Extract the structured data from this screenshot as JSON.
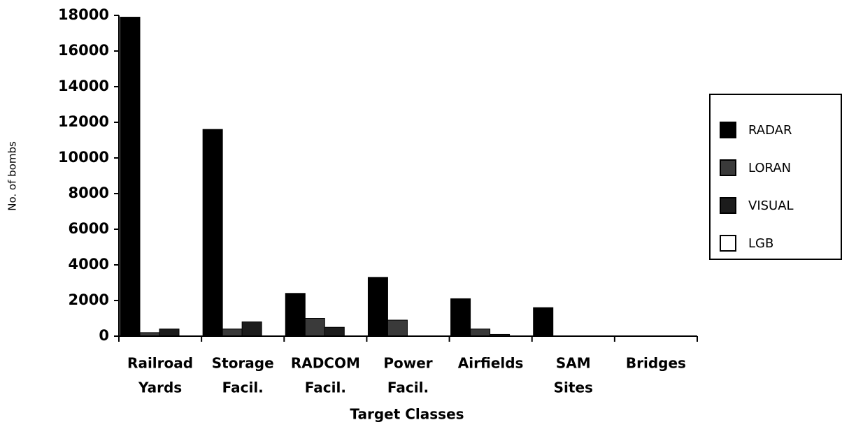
{
  "chart_data": {
    "type": "bar",
    "x_label": "Target Classes",
    "y_label": "No. of bombs",
    "categories": [
      [
        "Railroad",
        "Yards"
      ],
      [
        "Storage",
        "Facil."
      ],
      [
        "RADCOM",
        "Facil."
      ],
      [
        "Power",
        "Facil."
      ],
      [
        "Airfields"
      ],
      [
        "SAM",
        "Sites"
      ],
      [
        "Bridges"
      ]
    ],
    "series": [
      {
        "name": "RADAR",
        "color": "#000000",
        "values": [
          17900,
          11600,
          2400,
          3300,
          2100,
          1600,
          0
        ]
      },
      {
        "name": "LORAN",
        "color": "#3a3a3a",
        "values": [
          200,
          400,
          1000,
          900,
          400,
          0,
          0
        ]
      },
      {
        "name": "VISUAL",
        "color": "#1c1c1c",
        "values": [
          400,
          800,
          500,
          0,
          100,
          0,
          0
        ]
      },
      {
        "name": "LGB",
        "color": "#ffffff",
        "values": [
          0,
          0,
          0,
          0,
          0,
          0,
          0
        ]
      }
    ],
    "ylim": [
      0,
      18000
    ],
    "yticks": [
      0,
      2000,
      4000,
      6000,
      8000,
      10000,
      12000,
      14000,
      16000,
      18000
    ],
    "grid": false,
    "legend": "right"
  }
}
